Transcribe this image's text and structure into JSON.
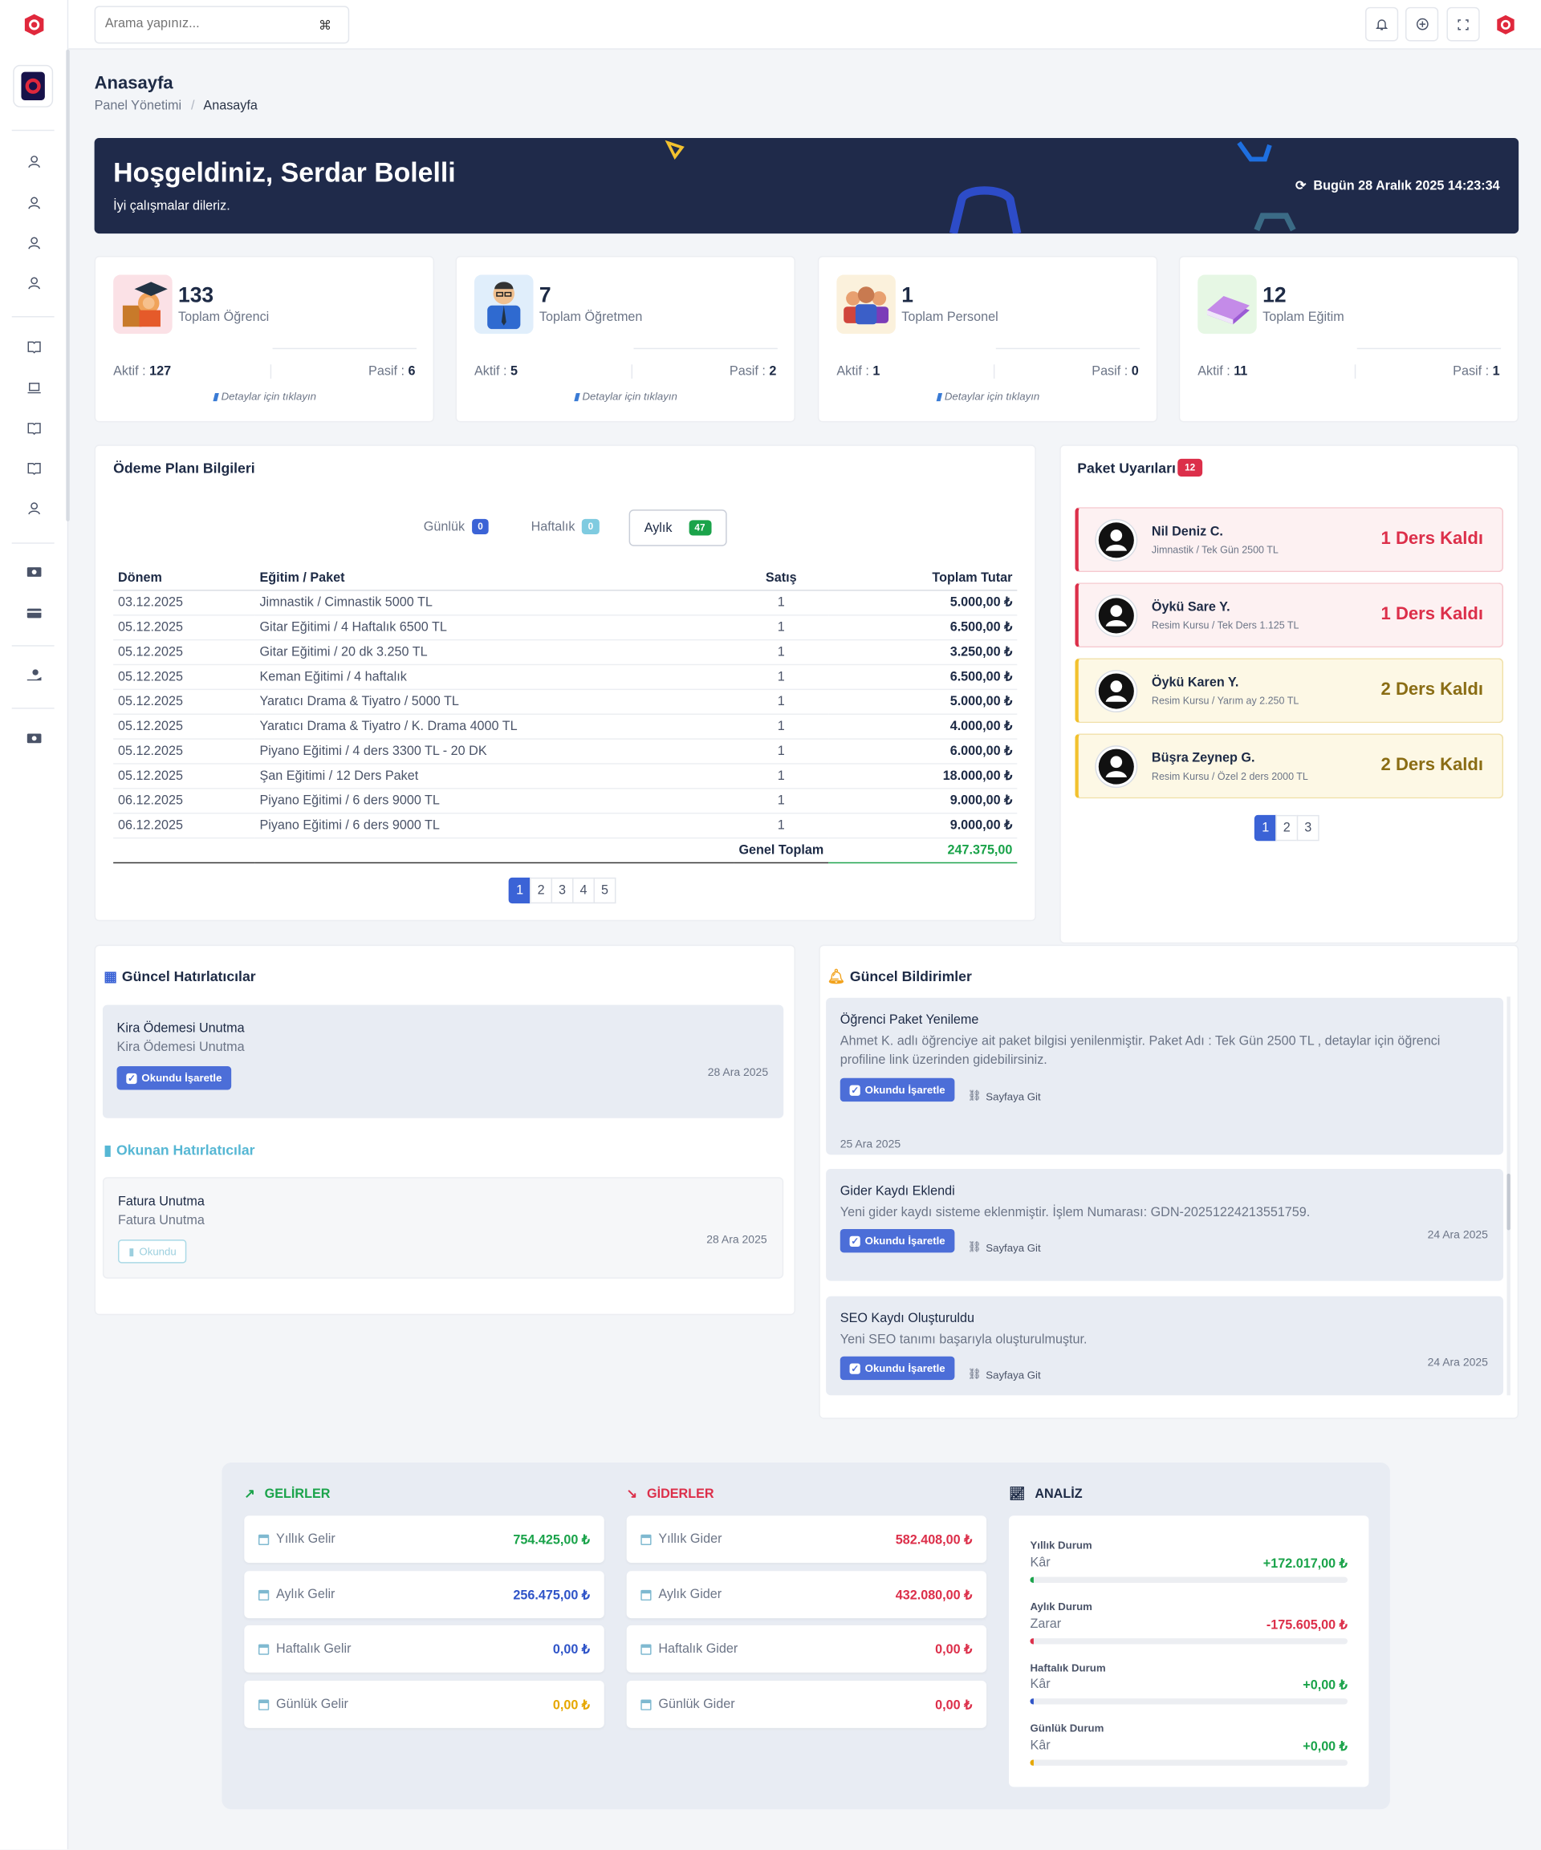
{
  "search": {
    "placeholder": "Arama yapınız...",
    "shortcut": "⌘"
  },
  "page": {
    "title": "Anasayfa",
    "breadcrumb_root": "Panel Yönetimi",
    "breadcrumb_sep": "/",
    "breadcrumb_current": "Anasayfa"
  },
  "welcome": {
    "title": "Hoşgeldiniz, Serdar Bolelli",
    "subtitle": "İyi çalışmalar dileriz.",
    "date": "Bugün 28 Aralık 2025 14:23:34"
  },
  "stats": [
    {
      "value": "133",
      "label": "Toplam Öğrenci",
      "active_label": "Aktif :",
      "active": "127",
      "passive_label": "Pasif :",
      "passive": "6",
      "detail": "Detaylar için tıklayın"
    },
    {
      "value": "7",
      "label": "Toplam Öğretmen",
      "active_label": "Aktif :",
      "active": "5",
      "passive_label": "Pasif :",
      "passive": "2",
      "detail": "Detaylar için tıklayın"
    },
    {
      "value": "1",
      "label": "Toplam Personel",
      "active_label": "Aktif :",
      "active": "1",
      "passive_label": "Pasif :",
      "passive": "0",
      "detail": "Detaylar için tıklayın"
    },
    {
      "value": "12",
      "label": "Toplam Eğitim",
      "active_label": "Aktif :",
      "active": "11",
      "passive_label": "Pasif :",
      "passive": "1",
      "detail": ""
    }
  ],
  "payment": {
    "title": "Ödeme Planı Bilgileri",
    "tabs": [
      {
        "label": "Günlük",
        "count": "0"
      },
      {
        "label": "Haftalık",
        "count": "0"
      },
      {
        "label": "Aylık",
        "count": "47"
      }
    ],
    "headers": [
      "Dönem",
      "Eğitim / Paket",
      "Satış",
      "Toplam Tutar"
    ],
    "rows": [
      [
        "03.12.2025",
        "Jimnastik / Cimnastik 5000 TL",
        "1",
        "5.000,00 ₺"
      ],
      [
        "05.12.2025",
        "Gitar Eğitimi / 4 Haftalık 6500 TL",
        "1",
        "6.500,00 ₺"
      ],
      [
        "05.12.2025",
        "Gitar Eğitimi / 20 dk 3.250 TL",
        "1",
        "3.250,00 ₺"
      ],
      [
        "05.12.2025",
        "Keman Eğitimi / 4 haftalık",
        "1",
        "6.500,00 ₺"
      ],
      [
        "05.12.2025",
        "Yaratıcı Drama & Tiyatro / 5000 TL",
        "1",
        "5.000,00 ₺"
      ],
      [
        "05.12.2025",
        "Yaratıcı Drama & Tiyatro / K. Drama 4000 TL",
        "1",
        "4.000,00 ₺"
      ],
      [
        "05.12.2025",
        "Piyano Eğitimi / 4 ders 3300 TL - 20 DK",
        "1",
        "6.000,00 ₺"
      ],
      [
        "05.12.2025",
        "Şan Eğitimi / 12 Ders Paket",
        "1",
        "18.000,00 ₺"
      ],
      [
        "06.12.2025",
        "Piyano Eğitimi / 6 ders 9000 TL",
        "1",
        "9.000,00 ₺"
      ],
      [
        "06.12.2025",
        "Piyano Eğitimi / 6 ders 9000 TL",
        "1",
        "9.000,00 ₺"
      ]
    ],
    "total_label": "Genel Toplam",
    "total_value": "247.375,00",
    "pages": [
      "1",
      "2",
      "3",
      "4",
      "5"
    ]
  },
  "packages": {
    "title": "Paket Uyarıları",
    "count": "12",
    "items": [
      {
        "name": "Nil Deniz C.",
        "detail": "Jimnastik / Tek Gün 2500 TL",
        "status": "1 Ders Kaldı"
      },
      {
        "name": "Öykü Sare Y.",
        "detail": "Resim Kursu / Tek Ders 1.125 TL",
        "status": "1 Ders Kaldı"
      },
      {
        "name": "Öykü Karen Y.",
        "detail": "Resim Kursu / Yarım ay 2.250 TL",
        "status": "2 Ders Kaldı"
      },
      {
        "name": "Büşra Zeynep G.",
        "detail": "Resim Kursu / Özel 2 ders 2000 TL",
        "status": "2 Ders Kaldı"
      }
    ],
    "pages": [
      "1",
      "2",
      "3"
    ]
  },
  "reminders": {
    "title": "Güncel Hatırlatıcılar",
    "current": {
      "title": "Kira Ödemesi Unutma",
      "desc": "Kira Ödemesi Unutma",
      "button": "Okundu İşaretle",
      "date": "28 Ara 2025"
    },
    "read_title": "Okunan Hatırlatıcılar",
    "read": {
      "title": "Fatura Unutma",
      "desc": "Fatura Unutma",
      "button": "Okundu",
      "date": "28 Ara 2025"
    }
  },
  "notifications": {
    "title": "Güncel Bildirimler",
    "items": [
      {
        "title": "Öğrenci Paket Yenileme",
        "desc": "Ahmet K. adlı öğrenciye ait paket bilgisi yenilenmiştir. Paket Adı : Tek Gün 2500 TL , detaylar için öğrenci profiline link üzerinden gidebilirsiniz.",
        "button": "Okundu İşaretle",
        "link": "Sayfaya Git",
        "date": "25 Ara 2025"
      },
      {
        "title": "Gider Kaydı Eklendi",
        "desc": "Yeni gider kaydı sisteme eklenmiştir. İşlem Numarası: GDN-20251224213551759.",
        "button": "Okundu İşaretle",
        "link": "Sayfaya Git",
        "date": "24 Ara 2025"
      },
      {
        "title": "SEO Kaydı Oluşturuldu",
        "desc": "Yeni SEO tanımı başarıyla oluşturulmuştur.",
        "button": "Okundu İşaretle",
        "link": "Sayfaya Git",
        "date": "24 Ara 2025"
      }
    ]
  },
  "finance": {
    "income_title": "GELİRLER",
    "expense_title": "GİDERLER",
    "analysis_title": "ANALİZ",
    "income": [
      {
        "label": "Yıllık Gelir",
        "value": "754.425,00 ₺",
        "color": "#1aa34a"
      },
      {
        "label": "Aylık Gelir",
        "value": "256.475,00 ₺",
        "color": "#2f54c8"
      },
      {
        "label": "Haftalık Gelir",
        "value": "0,00 ₺",
        "color": "#2f54c8"
      },
      {
        "label": "Günlük Gelir",
        "value": "0,00 ₺",
        "color": "#e6a700"
      }
    ],
    "expense": [
      {
        "label": "Yıllık Gider",
        "value": "582.408,00 ₺",
        "color": "#dc2f4a"
      },
      {
        "label": "Aylık Gider",
        "value": "432.080,00 ₺",
        "color": "#dc2f4a"
      },
      {
        "label": "Haftalık Gider",
        "value": "0,00 ₺",
        "color": "#dc2f4a"
      },
      {
        "label": "Günlük Gider",
        "value": "0,00 ₺",
        "color": "#dc2f4a"
      }
    ],
    "analysis": [
      {
        "heading": "Yıllık Durum",
        "kind": "Kâr",
        "value": "+172.017,00 ₺",
        "color": "#1aa34a",
        "fill": 0.01
      },
      {
        "heading": "Aylık Durum",
        "kind": "Zarar",
        "value": "-175.605,00 ₺",
        "color": "#dc2f4a",
        "fill": 0.01
      },
      {
        "heading": "Haftalık Durum",
        "kind": "Kâr",
        "value": "+0,00 ₺",
        "color": "#1aa34a",
        "fill": 0.01
      },
      {
        "heading": "Günlük Durum",
        "kind": "Kâr",
        "value": "+0,00 ₺",
        "color": "#1aa34a",
        "fill": 0.01
      }
    ]
  }
}
